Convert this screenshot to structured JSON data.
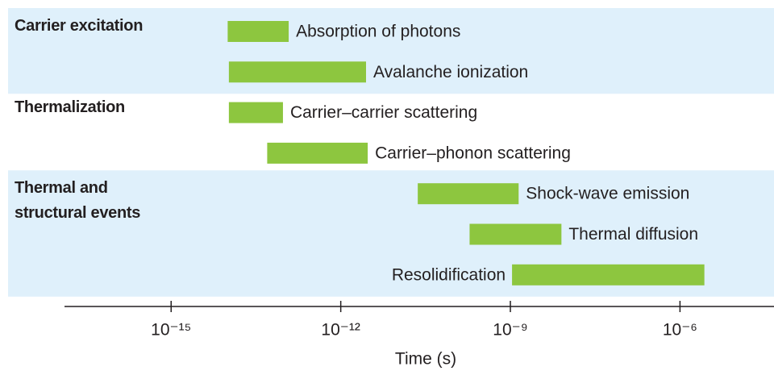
{
  "chart_data": {
    "type": "timeline",
    "x_label": "Time (s)",
    "xscale": "log",
    "xlim": [
      1.3e-17,
      4.6e-05
    ],
    "xticks": [
      {
        "value": 1e-15,
        "label": "10⁻¹⁵"
      },
      {
        "value": 1e-12,
        "label": "10⁻¹²"
      },
      {
        "value": 1e-09,
        "label": "10⁻⁹"
      },
      {
        "value": 1e-06,
        "label": "10⁻⁶"
      }
    ],
    "color": "#8dc63f",
    "band_color": "#dff0fb",
    "groups": [
      {
        "label": "Carrier excitation",
        "shaded": true,
        "bars": [
          {
            "label": "Absorption of photons",
            "start": 1e-14,
            "end": 1.2e-13
          },
          {
            "label": "Avalanche ionization",
            "start": 1.05e-14,
            "end": 2.8e-12
          }
        ]
      },
      {
        "label": "Thermalization",
        "shaded": false,
        "bars": [
          {
            "label": "Carrier–carrier scattering",
            "start": 1.05e-14,
            "end": 9.5e-14
          },
          {
            "label": "Carrier–phonon scattering",
            "start": 5e-14,
            "end": 3e-12
          }
        ]
      },
      {
        "label": "Thermal and structural events",
        "shaded": true,
        "bars": [
          {
            "label": "Shock-wave emission",
            "start": 2.3e-11,
            "end": 1.4e-09
          },
          {
            "label": "Thermal diffusion",
            "start": 1.9e-10,
            "end": 8e-09
          },
          {
            "label": "Resolidification",
            "start": 1.07e-09,
            "end": 2.7e-06,
            "label_position": "left"
          }
        ]
      }
    ]
  }
}
